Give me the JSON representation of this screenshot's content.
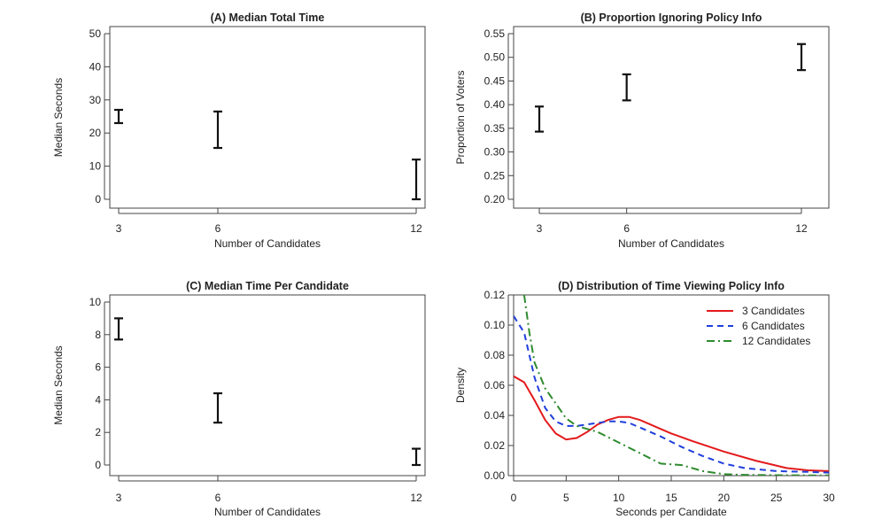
{
  "chart_data": [
    {
      "panel": "A",
      "type": "errorbar",
      "title": "(A) Median Total Time",
      "xlabel": "Number of Candidates",
      "ylabel": "Median Seconds",
      "xlim": [
        3,
        12
      ],
      "ylim": [
        0,
        50
      ],
      "xticks": [
        3,
        6,
        12
      ],
      "yticks": [
        0,
        10,
        20,
        30,
        40,
        50
      ],
      "ytick_format": 0,
      "grid": false,
      "points": [
        {
          "x": 3,
          "low": 23,
          "high": 27
        },
        {
          "x": 6,
          "low": 15.5,
          "high": 26.5
        },
        {
          "x": 12,
          "low": 0,
          "high": 12
        }
      ]
    },
    {
      "panel": "B",
      "type": "errorbar",
      "title": "(B) Proportion Ignoring Policy Info",
      "xlabel": "Number of Candidates",
      "ylabel": "Proportion of Voters",
      "xlim": [
        3,
        12
      ],
      "ylim": [
        0.2,
        0.55
      ],
      "xticks": [
        3,
        6,
        12
      ],
      "yticks": [
        0.2,
        0.25,
        0.3,
        0.35,
        0.4,
        0.45,
        0.5,
        0.55
      ],
      "ytick_format": 2,
      "grid": false,
      "points": [
        {
          "x": 3,
          "low": 0.343,
          "high": 0.396
        },
        {
          "x": 6,
          "low": 0.409,
          "high": 0.464
        },
        {
          "x": 12,
          "low": 0.473,
          "high": 0.528
        }
      ]
    },
    {
      "panel": "C",
      "type": "errorbar",
      "title": "(C) Median Time Per Candidate",
      "xlabel": "Number of Candidates",
      "ylabel": "Median Seconds",
      "xlim": [
        3,
        12
      ],
      "ylim": [
        0,
        10
      ],
      "xticks": [
        3,
        6,
        12
      ],
      "yticks": [
        0,
        2,
        4,
        6,
        8,
        10
      ],
      "ytick_format": 0,
      "grid": false,
      "points": [
        {
          "x": 3,
          "low": 7.7,
          "high": 9.0
        },
        {
          "x": 6,
          "low": 2.6,
          "high": 4.4
        },
        {
          "x": 12,
          "low": 0,
          "high": 1.0
        }
      ]
    },
    {
      "panel": "D",
      "type": "line",
      "title": "(D) Distribution of Time Viewing Policy Info",
      "xlabel": "Seconds per Candidate",
      "ylabel": "Density",
      "xlim": [
        0,
        30
      ],
      "ylim": [
        0,
        0.12
      ],
      "xticks": [
        0,
        5,
        10,
        15,
        20,
        25,
        30
      ],
      "yticks": [
        0,
        0.02,
        0.04,
        0.06,
        0.08,
        0.1,
        0.12
      ],
      "ytick_format": 2,
      "grid": false,
      "legend_position": "top-right",
      "series": [
        {
          "name": "3 Candidates",
          "color": "#e31a1c",
          "style": "solid",
          "x": [
            0,
            1,
            2,
            3,
            4,
            5,
            6,
            7,
            8,
            9,
            10,
            11,
            12,
            13,
            14,
            15,
            17,
            20,
            23,
            26,
            28,
            30
          ],
          "y": [
            0.066,
            0.062,
            0.05,
            0.037,
            0.028,
            0.024,
            0.025,
            0.029,
            0.034,
            0.037,
            0.039,
            0.039,
            0.037,
            0.034,
            0.031,
            0.028,
            0.023,
            0.016,
            0.01,
            0.005,
            0.0035,
            0.003
          ]
        },
        {
          "name": "6 Candidates",
          "color": "#1f3fdc",
          "style": "dashed",
          "x": [
            0,
            1,
            2,
            3,
            4,
            5,
            6,
            7,
            8,
            9,
            10,
            11,
            12,
            14,
            16,
            18,
            20,
            22,
            25,
            28,
            30
          ],
          "y": [
            0.106,
            0.095,
            0.065,
            0.045,
            0.036,
            0.033,
            0.033,
            0.034,
            0.035,
            0.036,
            0.036,
            0.035,
            0.032,
            0.026,
            0.019,
            0.013,
            0.008,
            0.005,
            0.003,
            0.0025,
            0.002
          ]
        },
        {
          "name": "12 Candidates",
          "color": "#2e8b2e",
          "style": "dashdot",
          "x": [
            1,
            1.5,
            2,
            3,
            4,
            5,
            6,
            7,
            8,
            10,
            12,
            14,
            16,
            18,
            20,
            22,
            25,
            28,
            30
          ],
          "y": [
            0.12,
            0.095,
            0.075,
            0.058,
            0.048,
            0.038,
            0.033,
            0.031,
            0.029,
            0.022,
            0.015,
            0.008,
            0.007,
            0.003,
            0.001,
            0.0005,
            0.0003,
            0.0002,
            0.0001
          ]
        }
      ]
    }
  ]
}
